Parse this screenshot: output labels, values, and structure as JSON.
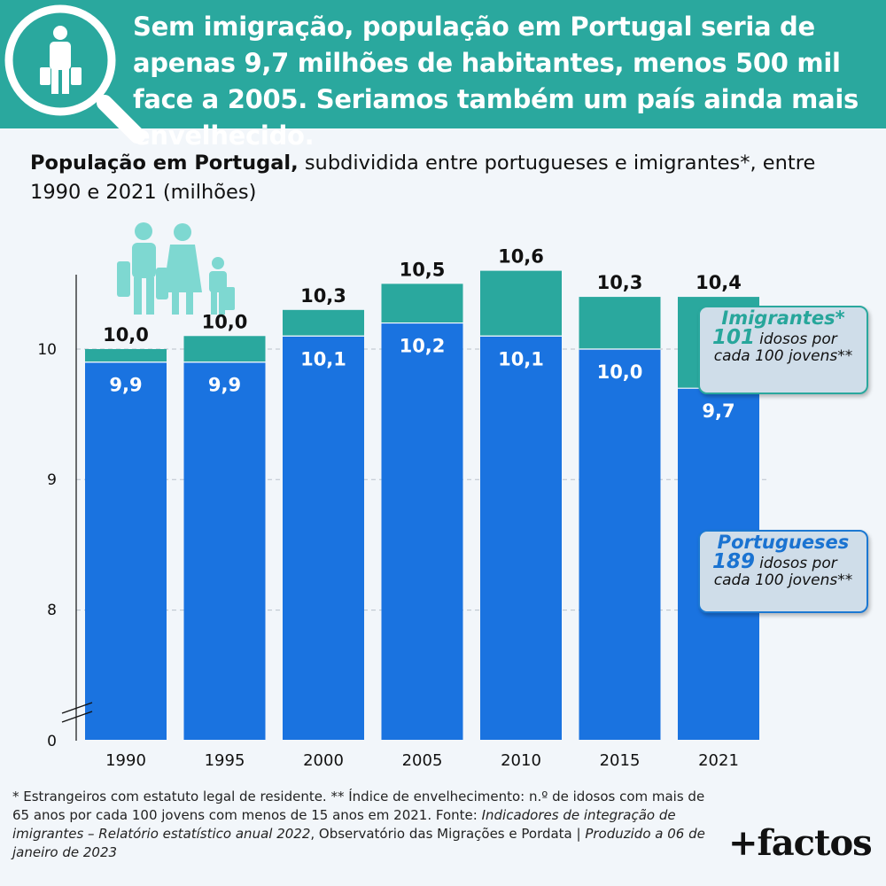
{
  "header": {
    "headline": "Sem imigração, população em Portugal seria de apenas 9,7 milhões de habitantes, menos 500 mil face a 2005. Seriamos também um país ainda mais envelhecido."
  },
  "subtitle": {
    "bold": "População em Portugal,",
    "rest": " subdividida entre portugueses e imigrantes*, entre 1990 e 2021 (milhões)"
  },
  "chart_data": {
    "type": "bar",
    "stacked": true,
    "categories": [
      "1990",
      "1995",
      "2000",
      "2005",
      "2010",
      "2015",
      "2021"
    ],
    "series": [
      {
        "name": "Portugueses",
        "values": [
          9.9,
          9.9,
          10.1,
          10.2,
          10.1,
          10.0,
          9.7
        ],
        "labels": [
          "9,9",
          "9,9",
          "10,1",
          "10,2",
          "10,1",
          "10,0",
          "9,7"
        ],
        "color": "#1a73e0"
      },
      {
        "name": "Imigrantes*",
        "values": [
          0.1,
          0.2,
          0.2,
          0.3,
          0.5,
          0.4,
          0.7
        ],
        "color": "#2aa89e"
      }
    ],
    "totals": [
      10.0,
      10.0,
      10.3,
      10.5,
      10.6,
      10.3,
      10.4
    ],
    "total_labels": [
      "10,0",
      "10,0",
      "10,3",
      "10,5",
      "10,6",
      "10,3",
      "10,4"
    ],
    "y_axis": {
      "break": true,
      "ticks": [
        "0",
        "8",
        "9",
        "10"
      ],
      "range_above_break": [
        8,
        10.8
      ]
    },
    "grid": true
  },
  "legend": {
    "immigrants": {
      "title": "Imigrantes*",
      "number": "101",
      "text_a": "idosos por",
      "text_b": "cada 100 jovens**"
    },
    "portuguese": {
      "title": "Portugueses",
      "number": "189",
      "text_a": "idosos por",
      "text_b": "cada 100 jovens**"
    }
  },
  "footnote": {
    "p1": "* Estrangeiros com estatuto legal de residente. ** Índice de envelhecimento: n.º de idosos com mais de 65 anos por cada 100 jovens com menos de 15 anos em 2021. Fonte: ",
    "p2": "Indicadores de integração de imigrantes – Relatório estatístico anual 2022",
    "p3": ", Observatório das Migrações e Pordata | ",
    "p4": "Produzido a 06 de janeiro de 2023"
  },
  "brand": "+factos",
  "colors": {
    "teal": "#2aa89e",
    "blue": "#1a73e0",
    "icon_light": "#7ed8d1",
    "background": "#f2f6fa"
  },
  "icons": [
    "person-with-luggage-icon",
    "magnifier-icon",
    "family-with-luggage-icon"
  ]
}
